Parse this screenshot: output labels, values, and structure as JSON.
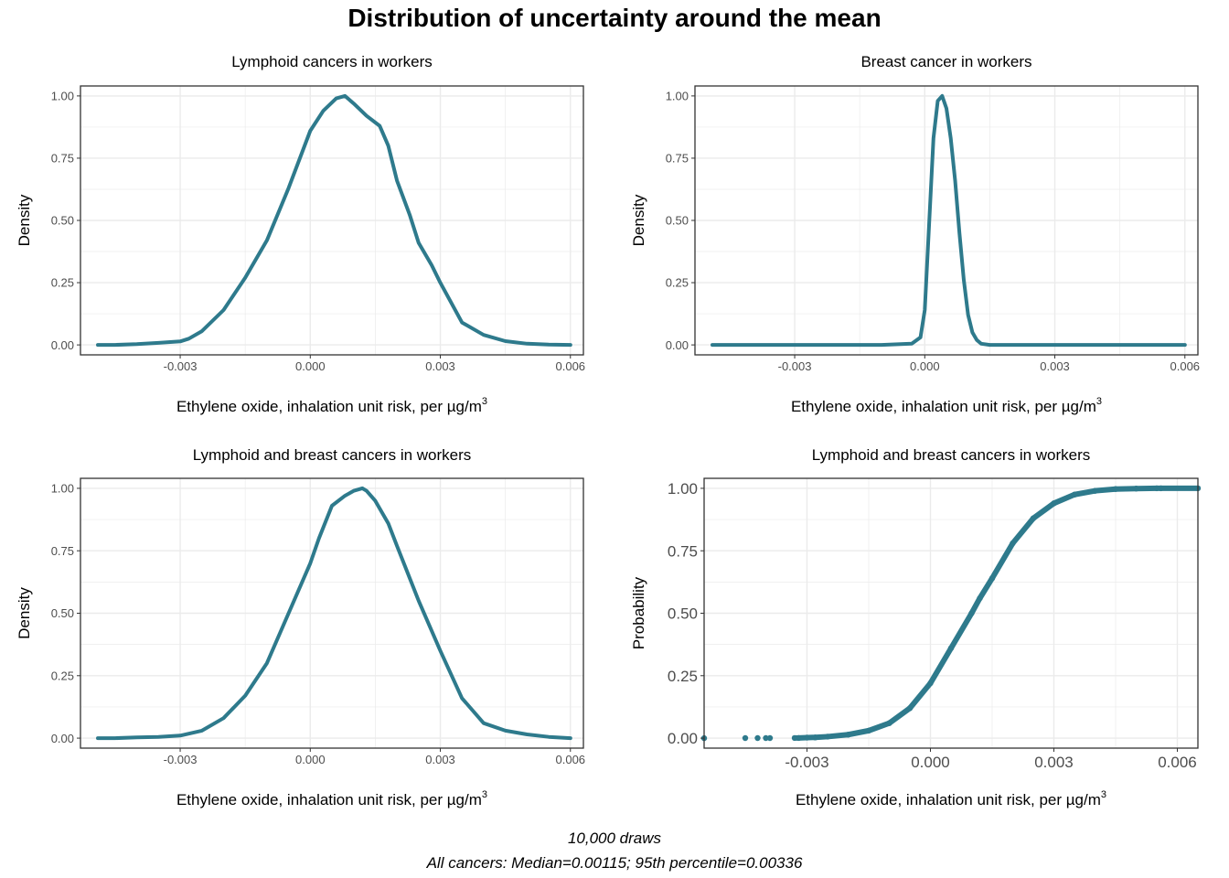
{
  "figure": {
    "title": "Distribution of uncertainty around the mean",
    "caption_line1": "10,000 draws",
    "caption_line2": "All cancers: Median=0.00115; 95th percentile=0.00336",
    "colors": {
      "line": "#2E7A8C",
      "grid": "#EBEBEB",
      "panel_border": "#333333",
      "axis_text": "#4D4D4D"
    }
  },
  "chart_data": [
    {
      "type": "line",
      "title": "Lymphoid cancers in workers",
      "xlabel": "Ethylene oxide, inhalation unit risk, per µg/m",
      "xlabel_sup": "3",
      "ylabel": "Density",
      "xlim": [
        -0.0053,
        0.0063
      ],
      "ylim": [
        -0.04,
        1.04
      ],
      "xticks": [
        -0.003,
        0.0,
        0.003,
        0.006
      ],
      "xtick_labels": [
        "-0.003",
        "0.000",
        "0.003",
        "0.006"
      ],
      "yticks": [
        0,
        0.25,
        0.5,
        0.75,
        1.0
      ],
      "ytick_labels": [
        "0.00",
        "0.25",
        "0.50",
        "0.75",
        "1.00"
      ],
      "grid": true,
      "series": [
        {
          "x": [
            -0.0049,
            -0.0045,
            -0.004,
            -0.0035,
            -0.003,
            -0.0028,
            -0.0025,
            -0.002,
            -0.0015,
            -0.001,
            -0.0005,
            0.0,
            0.0003,
            0.0006,
            0.0008,
            0.001,
            0.0013,
            0.0016,
            0.0018,
            0.002,
            0.0023,
            0.0025,
            0.0028,
            0.003,
            0.0035,
            0.004,
            0.0045,
            0.005,
            0.0055,
            0.006
          ],
          "y": [
            0.0,
            0.0,
            0.003,
            0.008,
            0.014,
            0.025,
            0.055,
            0.14,
            0.27,
            0.42,
            0.63,
            0.86,
            0.94,
            0.99,
            1.0,
            0.97,
            0.92,
            0.88,
            0.8,
            0.66,
            0.52,
            0.41,
            0.32,
            0.25,
            0.09,
            0.04,
            0.015,
            0.005,
            0.001,
            0.0
          ]
        }
      ]
    },
    {
      "type": "line",
      "title": "Breast cancer in workers",
      "xlabel": "Ethylene oxide, inhalation unit risk, per µg/m",
      "xlabel_sup": "3",
      "ylabel": "Density",
      "xlim": [
        -0.0053,
        0.0063
      ],
      "ylim": [
        -0.04,
        1.04
      ],
      "xticks": [
        -0.003,
        0.0,
        0.003,
        0.006
      ],
      "xtick_labels": [
        "-0.003",
        "0.000",
        "0.003",
        "0.006"
      ],
      "yticks": [
        0,
        0.25,
        0.5,
        0.75,
        1.0
      ],
      "ytick_labels": [
        "0.00",
        "0.25",
        "0.50",
        "0.75",
        "1.00"
      ],
      "grid": true,
      "series": [
        {
          "x": [
            -0.0049,
            -0.003,
            -0.001,
            -0.0003,
            -0.0001,
            0.0,
            0.0001,
            0.0002,
            0.0003,
            0.0004,
            0.0005,
            0.0006,
            0.0007,
            0.0008,
            0.0009,
            0.001,
            0.0011,
            0.0012,
            0.0013,
            0.0015,
            0.002,
            0.004,
            0.006
          ],
          "y": [
            0.0,
            0.0,
            0.0,
            0.005,
            0.03,
            0.14,
            0.48,
            0.83,
            0.98,
            1.0,
            0.95,
            0.83,
            0.66,
            0.45,
            0.26,
            0.12,
            0.05,
            0.02,
            0.005,
            0.0,
            0.0,
            0.0,
            0.0
          ]
        }
      ]
    },
    {
      "type": "line",
      "title": "Lymphoid and breast cancers in workers",
      "xlabel": "Ethylene oxide, inhalation unit risk, per µg/m",
      "xlabel_sup": "3",
      "ylabel": "Density",
      "xlim": [
        -0.0053,
        0.0063
      ],
      "ylim": [
        -0.04,
        1.04
      ],
      "xticks": [
        -0.003,
        0.0,
        0.003,
        0.006
      ],
      "xtick_labels": [
        "-0.003",
        "0.000",
        "0.003",
        "0.006"
      ],
      "yticks": [
        0,
        0.25,
        0.5,
        0.75,
        1.0
      ],
      "ytick_labels": [
        "0.00",
        "0.25",
        "0.50",
        "0.75",
        "1.00"
      ],
      "grid": true,
      "series": [
        {
          "x": [
            -0.0049,
            -0.0045,
            -0.004,
            -0.0035,
            -0.003,
            -0.0025,
            -0.002,
            -0.0015,
            -0.001,
            -0.0005,
            0.0,
            0.0002,
            0.0005,
            0.0008,
            0.001,
            0.0012,
            0.0013,
            0.0015,
            0.0018,
            0.002,
            0.0025,
            0.003,
            0.0035,
            0.004,
            0.0045,
            0.005,
            0.0055,
            0.006
          ],
          "y": [
            0.0,
            0.0,
            0.003,
            0.005,
            0.01,
            0.03,
            0.08,
            0.17,
            0.3,
            0.5,
            0.7,
            0.8,
            0.93,
            0.97,
            0.99,
            1.0,
            0.99,
            0.95,
            0.86,
            0.77,
            0.55,
            0.35,
            0.16,
            0.06,
            0.03,
            0.015,
            0.005,
            0.0
          ]
        }
      ]
    },
    {
      "type": "scatter",
      "title": "Lymphoid and breast cancers in workers",
      "xlabel": "Ethylene oxide, inhalation unit risk, per µg/m",
      "xlabel_sup": "3",
      "ylabel": "Probability",
      "xlim": [
        -0.0055,
        0.0065
      ],
      "ylim": [
        -0.04,
        1.04
      ],
      "xticks": [
        -0.003,
        0.0,
        0.003,
        0.006
      ],
      "xtick_labels": [
        "-0.003",
        "0.000",
        "0.003",
        "0.006"
      ],
      "yticks": [
        0,
        0.25,
        0.5,
        0.75,
        1.0
      ],
      "ytick_labels": [
        "0.00",
        "0.25",
        "0.50",
        "0.75",
        "1.00"
      ],
      "grid": true,
      "series": [
        {
          "x": [
            -0.0055,
            -0.0045,
            -0.0042,
            -0.004,
            -0.0039,
            -0.0033,
            -0.0032,
            -0.003,
            -0.0028,
            -0.0025,
            -0.002,
            -0.0015,
            -0.001,
            -0.0005,
            0.0,
            0.0005,
            0.001,
            0.0012,
            0.0015,
            0.002,
            0.0025,
            0.003,
            0.0035,
            0.004,
            0.0045,
            0.005,
            0.0055,
            0.0056,
            0.0065
          ],
          "y": [
            0.0,
            0.0001,
            0.0001,
            0.0002,
            0.0002,
            0.0005,
            0.0006,
            0.002,
            0.003,
            0.006,
            0.014,
            0.03,
            0.06,
            0.12,
            0.22,
            0.36,
            0.5,
            0.56,
            0.64,
            0.78,
            0.88,
            0.94,
            0.975,
            0.99,
            0.997,
            0.999,
            1.0,
            1.0,
            1.0
          ]
        }
      ]
    }
  ]
}
